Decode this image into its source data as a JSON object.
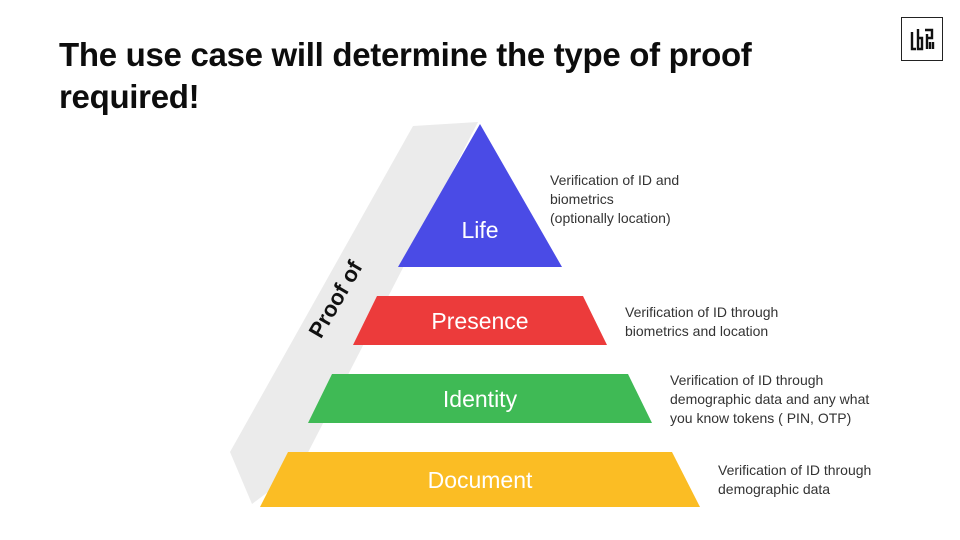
{
  "title": "The use case will determine the type of proof required!",
  "logo": {
    "icon": "brand-logo-icon"
  },
  "diagram": {
    "side_label": "Proof of",
    "levels": [
      {
        "label": "Life",
        "description": "Verification of ID and\nbiometrics\n(optionally location)",
        "color": "#4a4be6"
      },
      {
        "label": "Presence",
        "description": "Verification of ID through\nbiometrics and location",
        "color": "#ec3b3b"
      },
      {
        "label": "Identity",
        "description": "Verification of ID through\ndemographic data and any what\nyou know tokens ( PIN, OTP)",
        "color": "#3fba55"
      },
      {
        "label": "Document",
        "description": "Verification of ID through\ndemographic data",
        "color": "#fbbd24"
      }
    ]
  }
}
